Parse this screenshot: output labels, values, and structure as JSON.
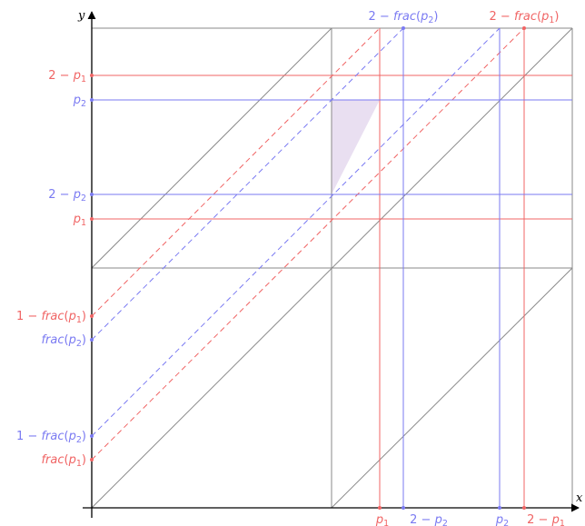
{
  "colors": {
    "red": "#f06464",
    "blue": "#7a7af2",
    "grid": "#8a8a8a",
    "axis": "#000000",
    "shade": "#e9dff1"
  },
  "axes": {
    "x": "x",
    "y": "y"
  },
  "labels": {
    "left": [
      {
        "id": "two-minus-p1",
        "color": "red",
        "text": "2 − p1",
        "parts": [
          {
            "t": "2 − "
          },
          {
            "t": "p",
            "it": true
          },
          {
            "t": "1",
            "sub": true
          }
        ]
      },
      {
        "id": "p2",
        "color": "blue",
        "text": "p2",
        "parts": [
          {
            "t": "p",
            "it": true
          },
          {
            "t": "2",
            "sub": true
          }
        ]
      },
      {
        "id": "two-minus-p2",
        "color": "blue",
        "text": "2 − p2",
        "parts": [
          {
            "t": "2 − "
          },
          {
            "t": "p",
            "it": true
          },
          {
            "t": "2",
            "sub": true
          }
        ]
      },
      {
        "id": "p1",
        "color": "red",
        "text": "p1",
        "parts": [
          {
            "t": "p",
            "it": true
          },
          {
            "t": "1",
            "sub": true
          }
        ]
      },
      {
        "id": "one-minus-frac-p1",
        "color": "red",
        "text": "1 − frac(p1)",
        "parts": [
          {
            "t": "1 − "
          },
          {
            "t": "frac",
            "it": true
          },
          {
            "t": "("
          },
          {
            "t": "p",
            "it": true
          },
          {
            "t": "1",
            "sub": true
          },
          {
            "t": ")"
          }
        ]
      },
      {
        "id": "frac-p2",
        "color": "blue",
        "text": "frac(p2)",
        "parts": [
          {
            "t": "frac",
            "it": true
          },
          {
            "t": "("
          },
          {
            "t": "p",
            "it": true
          },
          {
            "t": "2",
            "sub": true
          },
          {
            "t": ")"
          }
        ]
      },
      {
        "id": "one-minus-frac-p2",
        "color": "blue",
        "text": "1 − frac(p2)",
        "parts": [
          {
            "t": "1 − "
          },
          {
            "t": "frac",
            "it": true
          },
          {
            "t": "("
          },
          {
            "t": "p",
            "it": true
          },
          {
            "t": "2",
            "sub": true
          },
          {
            "t": ")"
          }
        ]
      },
      {
        "id": "frac-p1",
        "color": "red",
        "text": "frac(p1)",
        "parts": [
          {
            "t": "frac",
            "it": true
          },
          {
            "t": "("
          },
          {
            "t": "p",
            "it": true
          },
          {
            "t": "1",
            "sub": true
          },
          {
            "t": ")"
          }
        ]
      }
    ],
    "top": [
      {
        "id": "two-minus-frac-p2",
        "color": "blue",
        "text": "2 − frac(p2)",
        "parts": [
          {
            "t": "2 − "
          },
          {
            "t": "frac",
            "it": true
          },
          {
            "t": "("
          },
          {
            "t": "p",
            "it": true
          },
          {
            "t": "2",
            "sub": true
          },
          {
            "t": ")"
          }
        ]
      },
      {
        "id": "two-minus-frac-p1",
        "color": "red",
        "text": "2 − frac(p1)",
        "parts": [
          {
            "t": "2 − "
          },
          {
            "t": "frac",
            "it": true
          },
          {
            "t": "("
          },
          {
            "t": "p",
            "it": true
          },
          {
            "t": "1",
            "sub": true
          },
          {
            "t": ")"
          }
        ]
      }
    ],
    "bottom": [
      {
        "id": "p1",
        "color": "red",
        "text": "p1",
        "parts": [
          {
            "t": "p",
            "it": true
          },
          {
            "t": "1",
            "sub": true
          }
        ]
      },
      {
        "id": "two-minus-p2",
        "color": "blue",
        "text": "2 − p2",
        "parts": [
          {
            "t": "2 − "
          },
          {
            "t": "p",
            "it": true
          },
          {
            "t": "2",
            "sub": true
          }
        ]
      },
      {
        "id": "p2",
        "color": "blue",
        "text": "p2",
        "parts": [
          {
            "t": "p",
            "it": true
          },
          {
            "t": "2",
            "sub": true
          }
        ]
      },
      {
        "id": "two-minus-p1",
        "color": "red",
        "text": "2 − p1",
        "parts": [
          {
            "t": "2 − "
          },
          {
            "t": "p",
            "it": true
          },
          {
            "t": "1",
            "sub": true
          }
        ]
      }
    ]
  }
}
